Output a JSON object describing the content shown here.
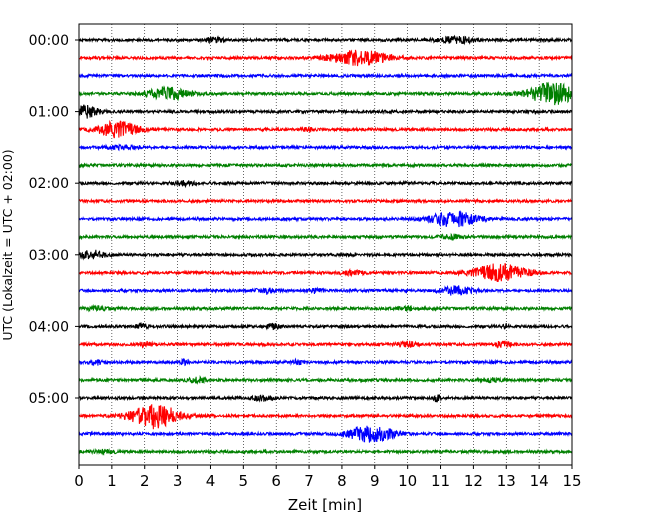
{
  "chart_data": {
    "type": "line",
    "title": "",
    "xlabel": "Zeit  [min]",
    "ylabel": "UTC (Lokalzeit = UTC + 02:00)",
    "xlim": [
      0,
      15
    ],
    "xticks": [
      0,
      1,
      2,
      3,
      4,
      5,
      6,
      7,
      8,
      9,
      10,
      11,
      12,
      13,
      14,
      15
    ],
    "xtick_labels": [
      "0",
      "1",
      "2",
      "3",
      "4",
      "5",
      "6",
      "7",
      "8",
      "9",
      "10",
      "11",
      "12",
      "13",
      "14",
      "15"
    ],
    "ytick_labels": [
      {
        "label": "00:00",
        "trace_index": 0
      },
      {
        "label": "01:00",
        "trace_index": 4
      },
      {
        "label": "02:00",
        "trace_index": 8
      },
      {
        "label": "03:00",
        "trace_index": 12
      },
      {
        "label": "04:00",
        "trace_index": 16
      },
      {
        "label": "05:00",
        "trace_index": 20
      }
    ],
    "grid": "vertical dotted at each minute",
    "trace_interval_minutes": 15,
    "color_cycle": [
      "#000000",
      "#ff0000",
      "#0000ff",
      "#008000"
    ],
    "traces": [
      {
        "start": "00:00",
        "color": "black",
        "events": [
          {
            "t": 4.1,
            "amp": 0.35,
            "dur": 0.3
          },
          {
            "t": 11.5,
            "amp": 0.5,
            "dur": 0.6
          }
        ]
      },
      {
        "start": "00:15",
        "color": "red",
        "events": [
          {
            "t": 8.5,
            "amp": 1.2,
            "dur": 0.9
          }
        ]
      },
      {
        "start": "00:30",
        "color": "blue",
        "events": []
      },
      {
        "start": "00:45",
        "color": "green",
        "events": [
          {
            "t": 2.7,
            "amp": 1.1,
            "dur": 0.6
          },
          {
            "t": 14.4,
            "amp": 1.8,
            "dur": 0.7
          }
        ]
      },
      {
        "start": "01:00",
        "color": "black",
        "events": [
          {
            "t": 0.2,
            "amp": 1.0,
            "dur": 0.4
          }
        ]
      },
      {
        "start": "01:15",
        "color": "red",
        "events": [
          {
            "t": 1.2,
            "amp": 1.3,
            "dur": 0.6
          },
          {
            "t": 7.0,
            "amp": 0.3,
            "dur": 0.2
          }
        ]
      },
      {
        "start": "01:30",
        "color": "blue",
        "events": [
          {
            "t": 1.3,
            "amp": 0.3,
            "dur": 0.5
          }
        ]
      },
      {
        "start": "01:45",
        "color": "green",
        "events": []
      },
      {
        "start": "02:00",
        "color": "black",
        "events": [
          {
            "t": 3.2,
            "amp": 0.35,
            "dur": 0.3
          }
        ]
      },
      {
        "start": "02:15",
        "color": "red",
        "events": []
      },
      {
        "start": "02:30",
        "color": "blue",
        "events": [
          {
            "t": 11.4,
            "amp": 1.2,
            "dur": 0.7
          }
        ]
      },
      {
        "start": "02:45",
        "color": "green",
        "events": [
          {
            "t": 11.3,
            "amp": 0.4,
            "dur": 0.3
          }
        ]
      },
      {
        "start": "03:00",
        "color": "black",
        "events": [
          {
            "t": 0.4,
            "amp": 0.7,
            "dur": 0.4
          }
        ]
      },
      {
        "start": "03:15",
        "color": "red",
        "events": [
          {
            "t": 12.8,
            "amp": 1.4,
            "dur": 0.8
          },
          {
            "t": 8.3,
            "amp": 0.3,
            "dur": 0.4
          }
        ]
      },
      {
        "start": "03:30",
        "color": "blue",
        "events": [
          {
            "t": 5.7,
            "amp": 0.4,
            "dur": 0.3
          },
          {
            "t": 7.2,
            "amp": 0.4,
            "dur": 0.2
          },
          {
            "t": 11.5,
            "amp": 0.7,
            "dur": 0.5
          }
        ]
      },
      {
        "start": "03:45",
        "color": "green",
        "events": [
          {
            "t": 0.6,
            "amp": 0.35,
            "dur": 0.3
          },
          {
            "t": 10.0,
            "amp": 0.3,
            "dur": 0.3
          }
        ]
      },
      {
        "start": "04:00",
        "color": "black",
        "events": [
          {
            "t": 1.9,
            "amp": 0.35,
            "dur": 0.2
          },
          {
            "t": 5.9,
            "amp": 0.4,
            "dur": 0.2
          },
          {
            "t": 13.0,
            "amp": 0.35,
            "dur": 0.1
          }
        ]
      },
      {
        "start": "04:15",
        "color": "red",
        "events": [
          {
            "t": 2.0,
            "amp": 0.4,
            "dur": 0.2
          },
          {
            "t": 10.0,
            "amp": 0.4,
            "dur": 0.3
          },
          {
            "t": 12.9,
            "amp": 0.6,
            "dur": 0.2
          }
        ]
      },
      {
        "start": "04:30",
        "color": "blue",
        "events": [
          {
            "t": 0.5,
            "amp": 0.4,
            "dur": 0.2
          },
          {
            "t": 3.2,
            "amp": 0.6,
            "dur": 0.1
          },
          {
            "t": 6.6,
            "amp": 0.3,
            "dur": 0.2
          }
        ]
      },
      {
        "start": "04:45",
        "color": "green",
        "events": [
          {
            "t": 3.6,
            "amp": 0.35,
            "dur": 0.3
          },
          {
            "t": 12.5,
            "amp": 0.3,
            "dur": 0.3
          }
        ]
      },
      {
        "start": "05:00",
        "color": "black",
        "events": [
          {
            "t": 5.6,
            "amp": 0.4,
            "dur": 0.3
          },
          {
            "t": 10.9,
            "amp": 0.6,
            "dur": 0.1
          }
        ]
      },
      {
        "start": "05:15",
        "color": "red",
        "events": [
          {
            "t": 2.3,
            "amp": 2.0,
            "dur": 0.7
          }
        ]
      },
      {
        "start": "05:30",
        "color": "blue",
        "events": [
          {
            "t": 8.9,
            "amp": 1.3,
            "dur": 0.7
          }
        ]
      },
      {
        "start": "05:45",
        "color": "green",
        "events": [
          {
            "t": 0.8,
            "amp": 0.3,
            "dur": 0.3
          }
        ]
      }
    ]
  }
}
